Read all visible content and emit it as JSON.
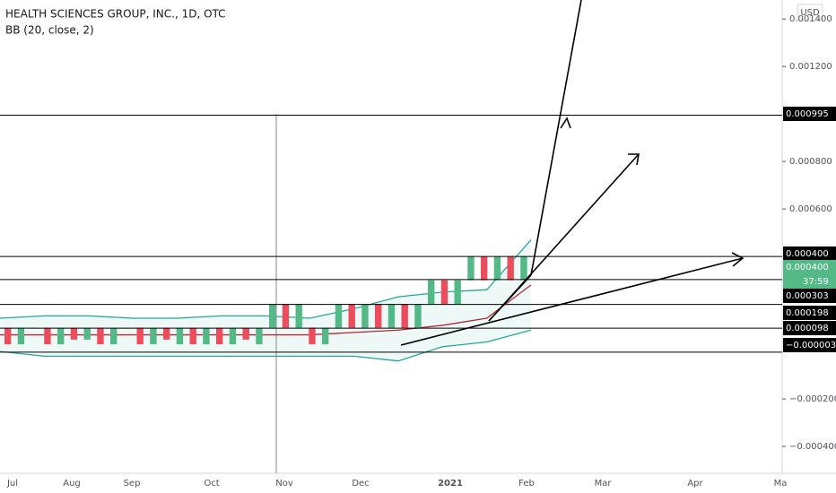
{
  "header": {
    "title": "HEALTH SCIENCES GROUP, INC., 1D, OTC",
    "indicator": "BB (20, close, 2)",
    "currency": "USD"
  },
  "chart_data": {
    "type": "candlestick",
    "ylim": [
      0.00148,
      -0.000513
    ],
    "yticks": [
      {
        "value": 0.0014,
        "label": "0.001400"
      },
      {
        "value": 0.0012,
        "label": "0.001200"
      },
      {
        "value": 0.0008,
        "label": "0.000800"
      },
      {
        "value": 0.0006,
        "label": "0.000600"
      },
      {
        "value": -0.0002,
        "label": "−0.000200"
      },
      {
        "value": -0.0004,
        "label": "−0.000400"
      }
    ],
    "xlabels": [
      "Jul",
      "Aug",
      "Sep",
      "Oct",
      "Nov",
      "Dec",
      "2021",
      "Feb",
      "Mar",
      "Apr",
      "Ma"
    ],
    "levels": [
      {
        "value": 0.000995,
        "label": "0.000995"
      },
      {
        "value": 0.0004,
        "label": "0.000400"
      },
      {
        "value": 0.000303,
        "label": "0.000303"
      },
      {
        "value": 0.000198,
        "label": "0.000198"
      },
      {
        "value": 9.8e-05,
        "label": "0.000098"
      },
      {
        "value": -3e-06,
        "label": "−0.000003"
      }
    ],
    "last_price": {
      "value": 0.0004,
      "label": "0.000400"
    },
    "countdown": "37:59",
    "up_color": "#53b987",
    "down_color": "#eb4d5c",
    "band_color": "#26a69a",
    "basis_color": "#b22833",
    "candles": [
      [
        0.0001,
        3e-05
      ],
      [
        3e-05,
        0.0001
      ],
      [
        0.0001,
        0.0001
      ],
      [
        0.0001,
        3e-05
      ],
      [
        3e-05,
        0.0001
      ],
      [
        0.0001,
        5e-05
      ],
      [
        5e-05,
        0.0001
      ],
      [
        0.0001,
        3e-05
      ],
      [
        3e-05,
        0.0001
      ],
      [
        0.0001,
        0.0001
      ],
      [
        0.0001,
        3e-05
      ],
      [
        3e-05,
        0.0001
      ],
      [
        0.0001,
        5e-05
      ],
      [
        3e-05,
        0.0001
      ],
      [
        0.0001,
        3e-05
      ],
      [
        3e-05,
        0.0001
      ],
      [
        0.0001,
        3e-05
      ],
      [
        3e-05,
        0.0001
      ],
      [
        0.0001,
        5e-05
      ],
      [
        3e-05,
        0.0001
      ],
      [
        0.0001,
        0.0002
      ],
      [
        0.0002,
        0.0001
      ],
      [
        0.0001,
        0.0002
      ],
      [
        0.0001,
        3e-05
      ],
      [
        3e-05,
        0.0001
      ],
      [
        0.0001,
        0.0002
      ],
      [
        0.0002,
        0.0001
      ],
      [
        0.0001,
        0.0002
      ],
      [
        0.0002,
        0.0001
      ],
      [
        0.0001,
        0.0002
      ],
      [
        0.0002,
        0.0001
      ],
      [
        0.0001,
        0.0002
      ],
      [
        0.0002,
        0.0003
      ],
      [
        0.0003,
        0.0002
      ],
      [
        0.0002,
        0.0003
      ],
      [
        0.0003,
        0.0004
      ],
      [
        0.0004,
        0.0003
      ],
      [
        0.0003,
        0.0004
      ],
      [
        0.0004,
        0.0003
      ],
      [
        0.0003,
        0.0004
      ]
    ],
    "bands": {
      "upper": [
        0.00014,
        0.00015,
        0.00015,
        0.00014,
        0.00014,
        0.00015,
        0.00015,
        0.00014,
        0.00018,
        0.00023,
        0.00025,
        0.00026,
        0.00047
      ],
      "basis": [
        7e-05,
        7e-05,
        7e-05,
        7e-05,
        7e-05,
        7e-05,
        7e-05,
        7e-05,
        8e-05,
        9e-05,
        0.00011,
        0.00014,
        0.00028
      ],
      "lower": [
        0,
        -2e-05,
        -2e-05,
        -2e-05,
        -2e-05,
        -2e-05,
        -2e-05,
        -2e-05,
        -2e-05,
        -4e-05,
        2e-05,
        4e-05,
        9e-05
      ]
    }
  }
}
